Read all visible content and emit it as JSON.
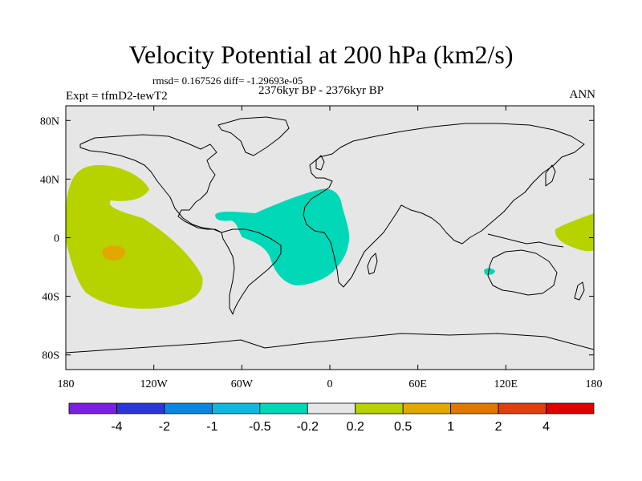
{
  "title": "Velocity Potential at 200 hPa (km2/s)",
  "stats_line": "rmsd= 0.167526 diff= -1.29693e-05",
  "period_line": "2376kyr BP - 2376kyr BP",
  "expt_line": "Expt = tfmD2-tewT2",
  "season": "ANN",
  "map": {
    "lon_range": [
      -180,
      180
    ],
    "lat_range": [
      -90,
      90
    ],
    "x_ticks": [
      {
        "value": -180,
        "label": "180"
      },
      {
        "value": -120,
        "label": "120W"
      },
      {
        "value": -60,
        "label": "60W"
      },
      {
        "value": 0,
        "label": "0"
      },
      {
        "value": 60,
        "label": "60E"
      },
      {
        "value": 120,
        "label": "120E"
      },
      {
        "value": 180,
        "label": "180"
      }
    ],
    "y_ticks": [
      {
        "value": 80,
        "label": "80N"
      },
      {
        "value": 40,
        "label": "40N"
      },
      {
        "value": 0,
        "label": "0"
      },
      {
        "value": -40,
        "label": "40S"
      },
      {
        "value": -80,
        "label": "80S"
      }
    ],
    "background_color": "#e6e6e6",
    "regions": [
      {
        "name": "east-pacific-positive",
        "level": "0.2 to 0.5",
        "color": "#b6d300"
      },
      {
        "name": "east-pacific-core",
        "level": "0.5 to 1",
        "color": "#e0a800"
      },
      {
        "name": "atlantic-negative",
        "level": "-0.5 to -0.2",
        "color": "#00d8b8"
      },
      {
        "name": "west-pacific-positive",
        "level": "0.2 to 0.5",
        "color": "#b6d300"
      },
      {
        "name": "indian-ocean-spot",
        "level": "-0.5 to -0.2",
        "color": "#00d8b8"
      }
    ]
  },
  "colorbar": {
    "colors": [
      "#7b1fe0",
      "#2b36d8",
      "#0a86e0",
      "#10b8e0",
      "#00d8b8",
      "#e6e6e6",
      "#b6d300",
      "#e0a800",
      "#e07800",
      "#e04010",
      "#e00000"
    ],
    "labels": [
      "-4",
      "-2",
      "-1",
      "-0.5",
      "-0.2",
      "0.2",
      "0.5",
      "1",
      "2",
      "4"
    ]
  }
}
